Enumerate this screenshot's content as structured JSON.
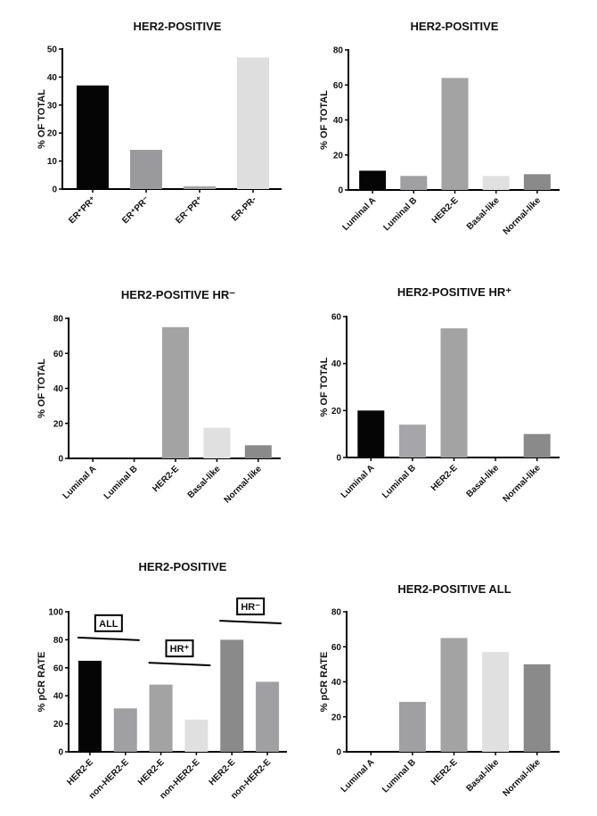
{
  "chart_data": [
    {
      "type": "bar",
      "title": "HER2-POSITIVE",
      "ylabel": "% OF TOTAL",
      "xlabel": "",
      "ylim": [
        0,
        50
      ],
      "yticks": [
        "0",
        "10",
        "20",
        "30",
        "40",
        "50"
      ],
      "categories": [
        "ER⁺PR⁺",
        "ER⁺PR⁻",
        "ER⁻PR⁺",
        "ER-PR-"
      ],
      "values": [
        37,
        14,
        1,
        47
      ],
      "colors": [
        "#050505",
        "#9a9a9c",
        "#a6a6a6",
        "#dedede"
      ]
    },
    {
      "type": "bar",
      "title": "HER2-POSITIVE",
      "ylabel": "% OF TOTAL",
      "xlabel": "",
      "ylim": [
        0,
        80
      ],
      "yticks": [
        "0",
        "20",
        "40",
        "60",
        "80"
      ],
      "categories": [
        "Luminal A",
        "Luminal B",
        "HER2-E",
        "Basal-like",
        "Normal-like"
      ],
      "values": [
        11,
        8,
        64,
        8,
        9
      ],
      "colors": [
        "#050505",
        "#a0a0a2",
        "#a3a3a3",
        "#e0e0e0",
        "#8a8a8a"
      ]
    },
    {
      "type": "bar",
      "title": "HER2-POSITIVE HR⁻",
      "ylabel": "% OF TOTAL",
      "xlabel": "",
      "ylim": [
        0,
        80
      ],
      "yticks": [
        "0",
        "20",
        "40",
        "60",
        "80"
      ],
      "categories": [
        "Luminal A",
        "Luminal B",
        "HER2-E",
        "Basal-like",
        "Normal-like"
      ],
      "values": [
        0,
        0,
        75,
        17.5,
        7.5
      ],
      "colors": [
        "#050505",
        "#a0a0a2",
        "#a3a3a3",
        "#e0e0e0",
        "#8a8a8a"
      ]
    },
    {
      "type": "bar",
      "title": "HER2-POSITIVE HR⁺",
      "ylabel": "% OF TOTAL",
      "xlabel": "",
      "ylim": [
        0,
        60
      ],
      "yticks": [
        "0",
        "20",
        "40",
        "60"
      ],
      "categories": [
        "Luminal A",
        "Luminal B",
        "HER2-E",
        "Basal-like",
        "Normal-like"
      ],
      "values": [
        20,
        14,
        55,
        0,
        10
      ],
      "colors": [
        "#050505",
        "#a6a6a8",
        "#a3a3a3",
        "#e0e0e0",
        "#8a8a8a"
      ]
    },
    {
      "type": "bar",
      "title": "HER2-POSITIVE",
      "ylabel": "% pCR RATE",
      "xlabel": "",
      "ylim": [
        0,
        100
      ],
      "yticks": [
        "0",
        "20",
        "40",
        "60",
        "80",
        "100"
      ],
      "categories": [
        "HER2-E",
        "non-HER2-E",
        "HER2-E",
        "non-HER2-E",
        "HER2-E",
        "non-HER2-E"
      ],
      "values": [
        65,
        31,
        48,
        23,
        80,
        50
      ],
      "colors": [
        "#050505",
        "#a0a0a2",
        "#a3a3a3",
        "#e0e0e0",
        "#8a8a8a",
        "#a0a0a2"
      ],
      "annotations": [
        {
          "label": "ALL",
          "bars": [
            0,
            1
          ],
          "line_level": 81
        },
        {
          "label": "HR⁺",
          "bars": [
            2,
            3
          ],
          "line_level": 63
        },
        {
          "label": "HR⁻",
          "bars": [
            4,
            5
          ],
          "line_level": 93
        }
      ]
    },
    {
      "type": "bar",
      "title": "HER2-POSITIVE ALL",
      "ylabel": "% pCR RATE",
      "xlabel": "",
      "ylim": [
        0,
        80
      ],
      "yticks": [
        "0",
        "20",
        "40",
        "60",
        "80"
      ],
      "categories": [
        "Luminal A",
        "Luminal B",
        "HER2-E",
        "Basal-like",
        "Normal-like"
      ],
      "values": [
        0,
        28.5,
        65,
        57,
        50
      ],
      "colors": [
        "#050505",
        "#a0a0a2",
        "#a3a3a3",
        "#e0e0e0",
        "#8a8a8a"
      ]
    }
  ]
}
